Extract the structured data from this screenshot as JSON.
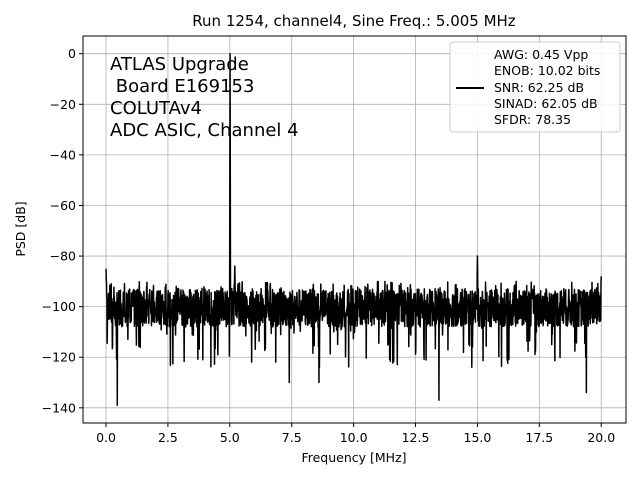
{
  "chart_data": {
    "type": "line",
    "title": "Run 1254, channel4, Sine Freq.: 5.005 MHz",
    "xlabel": "Frequency [MHz]",
    "ylabel": "PSD [dB]",
    "xlim": [
      -0.93,
      21.0
    ],
    "ylim": [
      -146.0,
      7.0
    ],
    "xticks": [
      0.0,
      2.5,
      5.0,
      7.5,
      10.0,
      12.5,
      15.0,
      17.5,
      20.0
    ],
    "xtick_labels": [
      "0.0",
      "2.5",
      "5.0",
      "7.5",
      "10.0",
      "12.5",
      "15.0",
      "17.5",
      "20.0"
    ],
    "yticks": [
      0,
      -20,
      -40,
      -60,
      -80,
      -100,
      -120,
      -140
    ],
    "ytick_labels": [
      "0",
      "−20",
      "−40",
      "−60",
      "−80",
      "−100",
      "−120",
      "−140"
    ],
    "grid": true,
    "line_color": "#000000",
    "annotation": [
      "ATLAS Upgrade",
      " Board E169153",
      "COLUTAv4",
      "ADC ASIC, Channel 4"
    ],
    "legend": {
      "placement": "top-right",
      "lines": [
        "AWG: 0.45 Vpp",
        "ENOB: 10.02 bits",
        "SNR: 62.25 dB",
        "SINAD: 62.05 dB",
        "SFDR: 78.35"
      ]
    },
    "noise_floor": {
      "x_range": [
        0.0,
        20.0
      ],
      "mean": -101,
      "band": [
        -108,
        -93
      ]
    },
    "features": [
      {
        "x": 0.0,
        "y": -85
      },
      {
        "x": 0.45,
        "y": -139
      },
      {
        "x": 5.005,
        "y": 0
      },
      {
        "x": 5.2,
        "y": -84
      },
      {
        "x": 7.4,
        "y": -130
      },
      {
        "x": 8.6,
        "y": -130
      },
      {
        "x": 13.45,
        "y": -137
      },
      {
        "x": 15.0,
        "y": -80
      },
      {
        "x": 19.4,
        "y": -134
      },
      {
        "x": 20.0,
        "y": -88
      }
    ]
  }
}
